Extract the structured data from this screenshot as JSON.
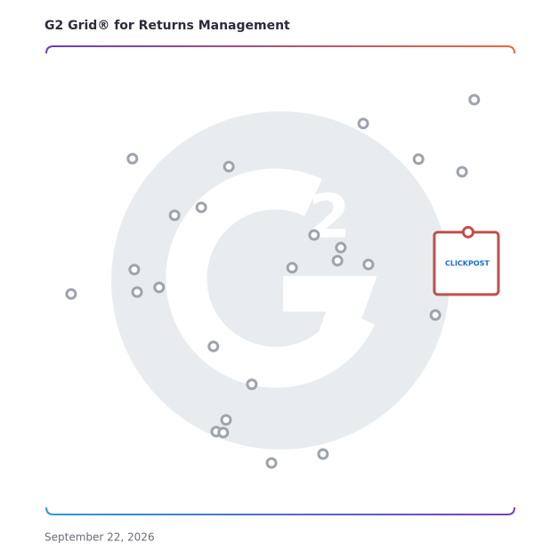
{
  "chart_data": {
    "type": "scatter",
    "title": "G2 Grid® for Returns Management",
    "footnote": "September 22, 2026",
    "xlim": [
      0,
      100
    ],
    "ylim": [
      0,
      100
    ],
    "series": [
      {
        "color": "#9ea3ac",
        "x": [
          91.4,
          67.7,
          79.5,
          88.8,
          18.4,
          39.0,
          33.1,
          27.4,
          57.2,
          62.9,
          62.2,
          68.8,
          52.5,
          18.8,
          24.1,
          19.4,
          5.3,
          83.1,
          35.7,
          43.9,
          38.4,
          36.3,
          37.8,
          59.1,
          48.1
        ],
        "y": [
          88.6,
          83.5,
          75.9,
          73.2,
          76.0,
          74.3,
          65.6,
          63.9,
          59.7,
          57.0,
          54.2,
          53.4,
          52.7,
          52.3,
          48.5,
          47.5,
          47.1,
          42.6,
          35.9,
          27.8,
          20.2,
          17.7,
          17.5,
          12.9,
          11.0
        ]
      }
    ],
    "highlight": {
      "label": "CLICKPOST",
      "x": 90.1,
      "y": 60.3,
      "color": "#c0504d"
    }
  }
}
